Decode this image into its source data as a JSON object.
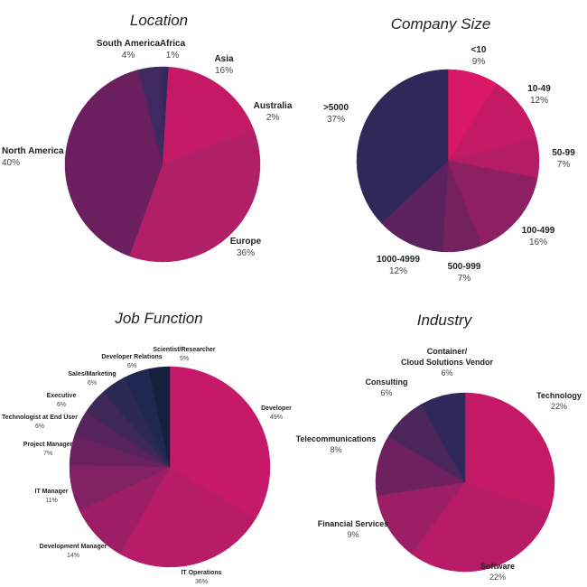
{
  "chart_data": [
    {
      "type": "pie",
      "title": "Location",
      "slices": [
        {
          "label": "Africa",
          "pct_label": "1%",
          "value": 1,
          "color": "#2e2a5e"
        },
        {
          "label": "Asia",
          "pct_label": "16%",
          "value": 16,
          "color": "#c41a66"
        },
        {
          "label": "Australia",
          "pct_label": "2%",
          "value": 2,
          "color": "#c21b6a"
        },
        {
          "label": "Europe",
          "pct_label": "36%",
          "value": 36,
          "color": "#b01f67"
        },
        {
          "label": "North America",
          "pct_label": "40%",
          "value": 40,
          "color": "#6b1f5e"
        },
        {
          "label": "South America",
          "pct_label": "4%",
          "value": 4,
          "color": "#3f2a5f"
        }
      ]
    },
    {
      "type": "pie",
      "title": "Company Size",
      "slices": [
        {
          "label": "<10",
          "pct_label": "9%",
          "value": 9,
          "color": "#db1867"
        },
        {
          "label": "10-49",
          "pct_label": "12%",
          "value": 12,
          "color": "#c41a66"
        },
        {
          "label": "50-99",
          "pct_label": "7%",
          "value": 7,
          "color": "#b41d65"
        },
        {
          "label": "100-499",
          "pct_label": "16%",
          "value": 16,
          "color": "#8e1f63"
        },
        {
          "label": "500-999",
          "pct_label": "7%",
          "value": 7,
          "color": "#74215f"
        },
        {
          "label": "1000-4999",
          "pct_label": "12%",
          "value": 12,
          "color": "#5d225d"
        },
        {
          "label": ">5000",
          "pct_label": "37%",
          "value": 37,
          "color": "#2f2858"
        }
      ]
    },
    {
      "type": "pie",
      "title": "Job Function",
      "slices": [
        {
          "label": "Developer",
          "pct_label": "49%",
          "value": 49,
          "color": "#c7196a"
        },
        {
          "label": "IT Operations",
          "pct_label": "36%",
          "value": 36,
          "color": "#b81c68"
        },
        {
          "label": "Development Manager",
          "pct_label": "14%",
          "value": 14,
          "color": "#9d1e65"
        },
        {
          "label": "IT Manager",
          "pct_label": "11%",
          "value": 11,
          "color": "#812062"
        },
        {
          "label": "Project Manager",
          "pct_label": "7%",
          "value": 7,
          "color": "#6a225f"
        },
        {
          "label": "Technologist at End User",
          "pct_label": "6%",
          "value": 6,
          "color": "#55245c"
        },
        {
          "label": "Executive",
          "pct_label": "6%",
          "value": 6,
          "color": "#3d2858"
        },
        {
          "label": "Sales/Marketing",
          "pct_label": "6%",
          "value": 6,
          "color": "#2a2954"
        },
        {
          "label": "Developer Relations",
          "pct_label": "6%",
          "value": 6,
          "color": "#1f2850"
        },
        {
          "label": "Scientist/Researcher",
          "pct_label": "5%",
          "value": 5,
          "color": "#15203f"
        }
      ]
    },
    {
      "type": "pie",
      "title": "Industry",
      "slices": [
        {
          "label": "Technology",
          "pct_label": "22%",
          "value": 22,
          "color": "#c41a66"
        },
        {
          "label": "Software",
          "pct_label": "22%",
          "value": 22,
          "color": "#b81c68"
        },
        {
          "label": "Financial Services",
          "pct_label": "9%",
          "value": 9,
          "color": "#9c1e65"
        },
        {
          "label": "Telecommunications",
          "pct_label": "8%",
          "value": 8,
          "color": "#6d225f"
        },
        {
          "label": "Consulting",
          "pct_label": "6%",
          "value": 6,
          "color": "#4b265b"
        },
        {
          "label": "Container/\nCloud Solutions Vendor",
          "pct_label": "6%",
          "value": 6,
          "color": "#2f2858"
        }
      ]
    }
  ]
}
